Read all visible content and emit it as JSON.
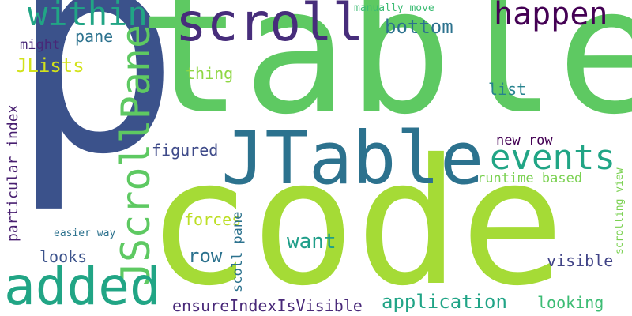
{
  "words": [
    {
      "id": "w-p",
      "text": "p",
      "color": "#3b528b"
    },
    {
      "id": "w-table",
      "text": "table",
      "color": "#5ec962"
    },
    {
      "id": "w-code",
      "text": "code",
      "color": "#a5db36"
    },
    {
      "id": "w-scroll",
      "text": "scroll",
      "color": "#472d7b"
    },
    {
      "id": "w-jtable",
      "text": "JTable",
      "color": "#2c728e"
    },
    {
      "id": "w-jscrollpane",
      "text": "JScrollPane",
      "color": "#5ec962"
    },
    {
      "id": "w-added",
      "text": "added",
      "color": "#21a585"
    },
    {
      "id": "w-within",
      "text": "within",
      "color": "#21a585"
    },
    {
      "id": "w-happen",
      "text": "happen",
      "color": "#440154"
    },
    {
      "id": "w-events",
      "text": "events",
      "color": "#21a585"
    },
    {
      "id": "w-application",
      "text": "application",
      "color": "#20a486"
    },
    {
      "id": "w-bottom",
      "text": "bottom",
      "color": "#2c728e"
    },
    {
      "id": "w-pane",
      "text": "pane",
      "color": "#2c728e"
    },
    {
      "id": "w-might",
      "text": "might",
      "color": "#482878"
    },
    {
      "id": "w-jlists",
      "text": "JLists",
      "color": "#d2e21b"
    },
    {
      "id": "w-thing",
      "text": "thing",
      "color": "#8fd744"
    },
    {
      "id": "w-list",
      "text": "list",
      "color": "#26828e"
    },
    {
      "id": "w-figured",
      "text": "figured",
      "color": "#3e4a89"
    },
    {
      "id": "w-new-row",
      "text": "new row",
      "color": "#440154"
    },
    {
      "id": "w-runtime-based",
      "text": "runtime based",
      "color": "#7ad151"
    },
    {
      "id": "w-forces",
      "text": "forces",
      "color": "#bddf26"
    },
    {
      "id": "w-want",
      "text": "want",
      "color": "#1f9e89"
    },
    {
      "id": "w-row",
      "text": "row",
      "color": "#2c728e"
    },
    {
      "id": "w-looks",
      "text": "looks",
      "color": "#3b528b"
    },
    {
      "id": "w-visible",
      "text": "visible",
      "color": "#414487"
    },
    {
      "id": "w-ensure",
      "text": "ensureIndexIsVisible",
      "color": "#482878"
    },
    {
      "id": "w-looking",
      "text": "looking",
      "color": "#3dbc74"
    },
    {
      "id": "w-manually",
      "text": "manually move",
      "color": "#3dbc74"
    },
    {
      "id": "w-easier",
      "text": "easier way",
      "color": "#2c728e"
    },
    {
      "id": "w-particular",
      "text": "particular index",
      "color": "#481f70"
    },
    {
      "id": "w-scoll-pane",
      "text": "scoll pane",
      "color": "#2c728e"
    },
    {
      "id": "w-scrolling",
      "text": "scrolling view",
      "color": "#7ad151"
    }
  ]
}
